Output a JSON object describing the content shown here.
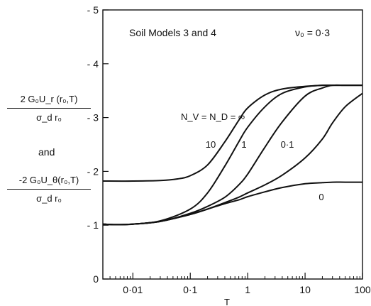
{
  "chart_data": {
    "type": "line",
    "x_scale": "log",
    "xlim": [
      0.003,
      100
    ],
    "ylim": [
      0,
      -5
    ],
    "xlabel": "T",
    "x_ticks": [
      {
        "value": 0.01,
        "label": "0·01"
      },
      {
        "value": 0.1,
        "label": "0·1"
      },
      {
        "value": 1,
        "label": "1"
      },
      {
        "value": 10,
        "label": "10"
      },
      {
        "value": 100,
        "label": "100"
      }
    ],
    "y_ticks": [
      {
        "value": 0,
        "label": "0"
      },
      {
        "value": -1,
        "label": "- 1"
      },
      {
        "value": -2,
        "label": "- 2"
      },
      {
        "value": -3,
        "label": "- 3"
      },
      {
        "value": -4,
        "label": "- 4"
      },
      {
        "value": -5,
        "label": "- 5"
      }
    ],
    "ylabel_top": {
      "num": "2 G₀U_r (r₀,T)",
      "den": "σ_d r₀"
    },
    "ylabel_and": "and",
    "ylabel_bottom": {
      "num": "-2 G₀U_θ(r₀,T)",
      "den": "σ_d r₀"
    },
    "annotations": {
      "title": "Soil Models 3 and 4",
      "poisson": "ν₀ = 0·3",
      "n_label": "N_V = N_D = ∞"
    },
    "series": [
      {
        "name": "∞",
        "x": [
          0.003,
          0.01,
          0.03,
          0.06,
          0.1,
          0.2,
          0.4,
          0.7,
          1,
          2,
          4,
          10,
          20,
          30,
          50,
          100
        ],
        "y": [
          -1.82,
          -1.82,
          -1.83,
          -1.86,
          -1.92,
          -2.12,
          -2.55,
          -2.95,
          -3.18,
          -3.42,
          -3.53,
          -3.58,
          -3.6,
          -3.6,
          -3.6,
          -3.6
        ]
      },
      {
        "name": "10",
        "x": [
          0.003,
          0.005,
          0.01,
          0.03,
          0.1,
          0.2,
          0.4,
          0.7,
          1,
          2,
          4,
          10,
          20,
          30,
          50,
          100
        ],
        "y": [
          -1.02,
          -1.01,
          -1.02,
          -1.08,
          -1.3,
          -1.6,
          -2.1,
          -2.55,
          -2.82,
          -3.2,
          -3.45,
          -3.57,
          -3.6,
          -3.6,
          -3.6,
          -3.6
        ]
      },
      {
        "name": "1",
        "x": [
          0.003,
          0.005,
          0.01,
          0.03,
          0.1,
          0.2,
          0.4,
          0.7,
          1,
          2,
          4,
          10,
          20,
          30,
          50,
          100
        ],
        "y": [
          -1.02,
          -1.01,
          -1.02,
          -1.07,
          -1.22,
          -1.35,
          -1.52,
          -1.75,
          -1.95,
          -2.45,
          -2.92,
          -3.4,
          -3.55,
          -3.6,
          -3.6,
          -3.6
        ]
      },
      {
        "name": "0·1",
        "x": [
          0.003,
          0.005,
          0.01,
          0.03,
          0.1,
          0.2,
          0.4,
          0.7,
          1,
          2,
          4,
          10,
          20,
          30,
          50,
          100
        ],
        "y": [
          -1.02,
          -1.01,
          -1.02,
          -1.07,
          -1.2,
          -1.3,
          -1.42,
          -1.52,
          -1.6,
          -1.75,
          -1.93,
          -2.25,
          -2.6,
          -2.9,
          -3.2,
          -3.45
        ]
      },
      {
        "name": "0",
        "x": [
          0.003,
          0.005,
          0.01,
          0.03,
          0.1,
          0.2,
          0.4,
          0.7,
          1,
          2,
          4,
          10,
          20,
          30,
          50,
          100
        ],
        "y": [
          -1.02,
          -1.01,
          -1.02,
          -1.07,
          -1.2,
          -1.3,
          -1.4,
          -1.47,
          -1.53,
          -1.62,
          -1.7,
          -1.77,
          -1.79,
          -1.8,
          -1.8,
          -1.8
        ]
      }
    ]
  }
}
